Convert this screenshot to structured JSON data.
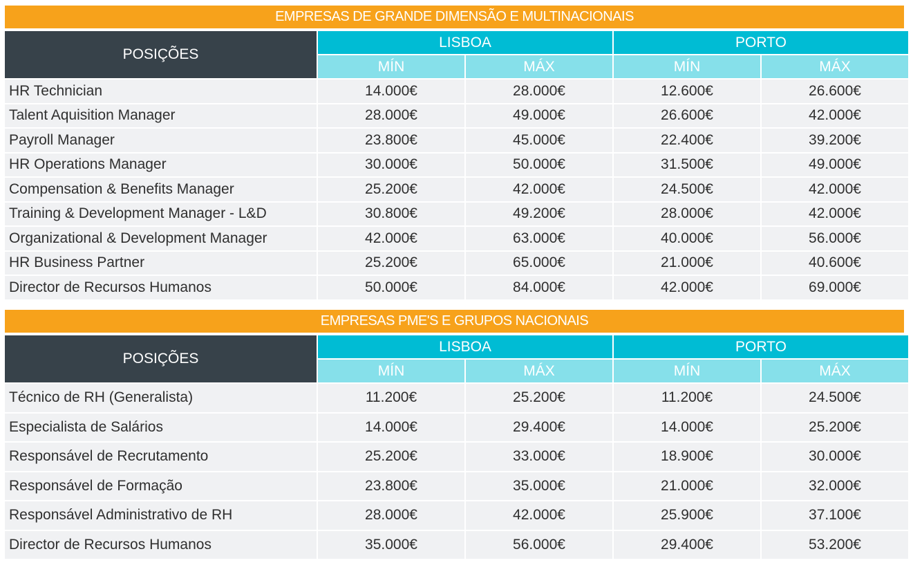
{
  "headers": {
    "positions": "POSIÇÕES",
    "lisboa": "LISBOA",
    "porto": "PORTO",
    "min": "MÍN",
    "max": "MÁX"
  },
  "sections": [
    {
      "title": "EMPRESAS DE GRANDE DIMENSÃO E MULTINACIONAIS",
      "rows": [
        {
          "position": "HR Technician",
          "lisboa_min": "14.000€",
          "lisboa_max": "28.000€",
          "porto_min": "12.600€",
          "porto_max": "26.600€"
        },
        {
          "position": "Talent Aquisition Manager",
          "lisboa_min": "28.000€",
          "lisboa_max": "49.000€",
          "porto_min": "26.600€",
          "porto_max": "42.000€"
        },
        {
          "position": "Payroll Manager",
          "lisboa_min": "23.800€",
          "lisboa_max": "45.000€",
          "porto_min": "22.400€",
          "porto_max": "39.200€"
        },
        {
          "position": "HR Operations Manager",
          "lisboa_min": "30.000€",
          "lisboa_max": "50.000€",
          "porto_min": "31.500€",
          "porto_max": "49.000€"
        },
        {
          "position": "Compensation & Benefits Manager",
          "lisboa_min": "25.200€",
          "lisboa_max": "42.000€",
          "porto_min": "24.500€",
          "porto_max": "42.000€"
        },
        {
          "position": "Training & Development Manager - L&D",
          "lisboa_min": "30.800€",
          "lisboa_max": "49.200€",
          "porto_min": "28.000€",
          "porto_max": "42.000€"
        },
        {
          "position": "Organizational & Development Manager",
          "lisboa_min": "42.000€",
          "lisboa_max": "63.000€",
          "porto_min": "40.000€",
          "porto_max": "56.000€"
        },
        {
          "position": "HR Business Partner",
          "lisboa_min": "25.200€",
          "lisboa_max": "65.000€",
          "porto_min": "21.000€",
          "porto_max": "40.600€"
        },
        {
          "position": "Director de Recursos Humanos",
          "lisboa_min": "50.000€",
          "lisboa_max": "84.000€",
          "porto_min": "42.000€",
          "porto_max": "69.000€"
        }
      ]
    },
    {
      "title": "EMPRESAS PME'S E GRUPOS NACIONAIS",
      "rows": [
        {
          "position": "Técnico de RH (Generalista)",
          "lisboa_min": "11.200€",
          "lisboa_max": "25.200€",
          "porto_min": "11.200€",
          "porto_max": "24.500€"
        },
        {
          "position": "Especialista de Salários",
          "lisboa_min": "14.000€",
          "lisboa_max": "29.400€",
          "porto_min": "14.000€",
          "porto_max": "25.200€"
        },
        {
          "position": "Responsável de Recrutamento",
          "lisboa_min": "25.200€",
          "lisboa_max": "33.000€",
          "porto_min": "18.900€",
          "porto_max": "30.000€"
        },
        {
          "position": "Responsável de Formação",
          "lisboa_min": "23.800€",
          "lisboa_max": "35.000€",
          "porto_min": "21.000€",
          "porto_max": "32.000€"
        },
        {
          "position": "Responsável Administrativo de RH",
          "lisboa_min": "28.000€",
          "lisboa_max": "42.000€",
          "porto_min": "25.900€",
          "porto_max": "37.100€"
        },
        {
          "position": "Director de Recursos Humanos",
          "lisboa_min": "35.000€",
          "lisboa_max": "56.000€",
          "porto_min": "29.400€",
          "porto_max": "53.200€"
        }
      ]
    }
  ],
  "colors": {
    "section_title_bg": "#f7a21b",
    "positions_header_bg": "#37424a",
    "city_header_bg": "#00bcd4",
    "minmax_header_bg": "#86e0ea",
    "row_bg": "#f0f1f3"
  }
}
